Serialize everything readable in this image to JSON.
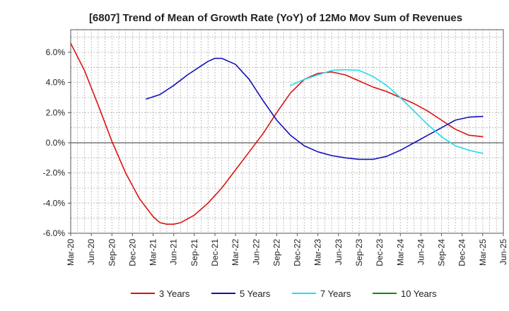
{
  "chart_data": {
    "type": "line",
    "title": "[6807]  Trend of Mean of Growth Rate (YoY) of 12Mo Mov Sum of Revenues",
    "xlabel": "",
    "ylabel": "",
    "ylim": [
      -6.0,
      7.5
    ],
    "y_ticks": [
      6.0,
      4.0,
      2.0,
      0.0,
      -2.0,
      -4.0,
      -6.0
    ],
    "y_tick_labels": [
      "6.0%",
      "4.0%",
      "2.0%",
      "0.0%",
      "-2.0%",
      "-4.0%",
      "-6.0%"
    ],
    "x_range_months": [
      0,
      63
    ],
    "x_tick_months": [
      0,
      3,
      6,
      9,
      12,
      15,
      18,
      21,
      24,
      27,
      30,
      33,
      36,
      39,
      42,
      45,
      48,
      51,
      54,
      57,
      60,
      63
    ],
    "x_tick_labels": [
      "Mar-20",
      "Jun-20",
      "Sep-20",
      "Dec-20",
      "Mar-21",
      "Jun-21",
      "Sep-21",
      "Dec-21",
      "Mar-22",
      "Jun-22",
      "Sep-22",
      "Dec-22",
      "Mar-23",
      "Jun-23",
      "Sep-23",
      "Dec-23",
      "Mar-24",
      "Jun-24",
      "Sep-24",
      "Dec-24",
      "Mar-25",
      "Jun-25"
    ],
    "grid": true,
    "legend_position": "bottom",
    "series": [
      {
        "name": "3 Years",
        "color": "#dd1111",
        "x": [
          0,
          2,
          4,
          6,
          8,
          10,
          12,
          13,
          14,
          15,
          16,
          18,
          20,
          22,
          24,
          26,
          28,
          30,
          32,
          34,
          36,
          38,
          40,
          42,
          44,
          46,
          48,
          50,
          52,
          54,
          56,
          58,
          60
        ],
        "values": [
          6.6,
          4.8,
          2.5,
          0.1,
          -2.0,
          -3.7,
          -4.9,
          -5.3,
          -5.4,
          -5.4,
          -5.3,
          -4.8,
          -4.0,
          -3.0,
          -1.8,
          -0.6,
          0.6,
          2.0,
          3.3,
          4.2,
          4.6,
          4.7,
          4.5,
          4.1,
          3.7,
          3.4,
          3.0,
          2.6,
          2.1,
          1.5,
          0.9,
          0.5,
          0.4
        ]
      },
      {
        "name": "5 Years",
        "color": "#1111bb",
        "x": [
          11,
          13,
          15,
          17,
          19,
          20,
          21,
          22,
          24,
          26,
          28,
          30,
          32,
          34,
          36,
          38,
          40,
          42,
          44,
          46,
          48,
          50,
          52,
          54,
          56,
          58,
          60
        ],
        "values": [
          2.9,
          3.2,
          3.8,
          4.5,
          5.1,
          5.4,
          5.6,
          5.6,
          5.2,
          4.2,
          2.8,
          1.5,
          0.5,
          -0.2,
          -0.6,
          -0.85,
          -1.0,
          -1.1,
          -1.1,
          -0.9,
          -0.5,
          0.0,
          0.5,
          1.0,
          1.5,
          1.7,
          1.75
        ]
      },
      {
        "name": "7 Years",
        "color": "#22ddee",
        "x": [
          32,
          34,
          36,
          38,
          40,
          42,
          44,
          46,
          48,
          50,
          52,
          54,
          56,
          58,
          60
        ],
        "values": [
          3.8,
          4.2,
          4.5,
          4.8,
          4.85,
          4.8,
          4.4,
          3.8,
          3.0,
          2.1,
          1.2,
          0.4,
          -0.2,
          -0.5,
          -0.7
        ]
      },
      {
        "name": "10 Years",
        "color": "#118811",
        "x": [],
        "values": []
      }
    ]
  }
}
